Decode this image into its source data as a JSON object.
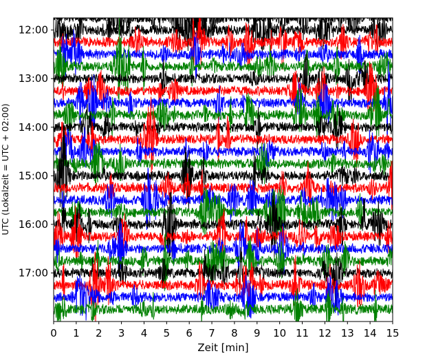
{
  "chart_data": {
    "type": "line",
    "title": "",
    "xlabel": "Zeit  [min]",
    "ylabel": "UTC (Lokalzeit = UTC + 02:00)",
    "xlim": [
      0,
      15
    ],
    "x_ticks": [
      0,
      1,
      2,
      3,
      4,
      5,
      6,
      7,
      8,
      9,
      10,
      11,
      12,
      13,
      14,
      15
    ],
    "y_ticks": [
      "12:00",
      "13:00",
      "14:00",
      "15:00",
      "16:00",
      "17:00"
    ],
    "y_tick_minutes_after_start": [
      0,
      60,
      120,
      180,
      240,
      300
    ],
    "ylim_minutes_after_start": [
      -15,
      360
    ],
    "y_axis_inverted": true,
    "description_of_data": "Stacked seismogram traces, one per 15-minute window from 11:45 to 17:45 UTC; colors cycle black, red, blue, green",
    "series": [
      {
        "start": "11:45",
        "color": "#000000"
      },
      {
        "start": "12:00",
        "color": "#000000"
      },
      {
        "start": "12:15",
        "color": "#ff0000"
      },
      {
        "start": "12:30",
        "color": "#0000ff"
      },
      {
        "start": "12:45",
        "color": "#008000"
      },
      {
        "start": "13:00",
        "color": "#000000"
      },
      {
        "start": "13:15",
        "color": "#ff0000"
      },
      {
        "start": "13:30",
        "color": "#0000ff"
      },
      {
        "start": "13:45",
        "color": "#008000"
      },
      {
        "start": "14:00",
        "color": "#000000"
      },
      {
        "start": "14:15",
        "color": "#ff0000"
      },
      {
        "start": "14:30",
        "color": "#0000ff"
      },
      {
        "start": "14:45",
        "color": "#008000"
      },
      {
        "start": "15:00",
        "color": "#000000"
      },
      {
        "start": "15:15",
        "color": "#ff0000"
      },
      {
        "start": "15:30",
        "color": "#0000ff"
      },
      {
        "start": "15:45",
        "color": "#008000"
      },
      {
        "start": "16:00",
        "color": "#000000"
      },
      {
        "start": "16:15",
        "color": "#ff0000"
      },
      {
        "start": "16:30",
        "color": "#0000ff"
      },
      {
        "start": "16:45",
        "color": "#008000"
      },
      {
        "start": "17:00",
        "color": "#000000"
      },
      {
        "start": "17:15",
        "color": "#ff0000"
      },
      {
        "start": "17:30",
        "color": "#0000ff"
      },
      {
        "start": "17:45",
        "color": "#008000"
      }
    ]
  }
}
